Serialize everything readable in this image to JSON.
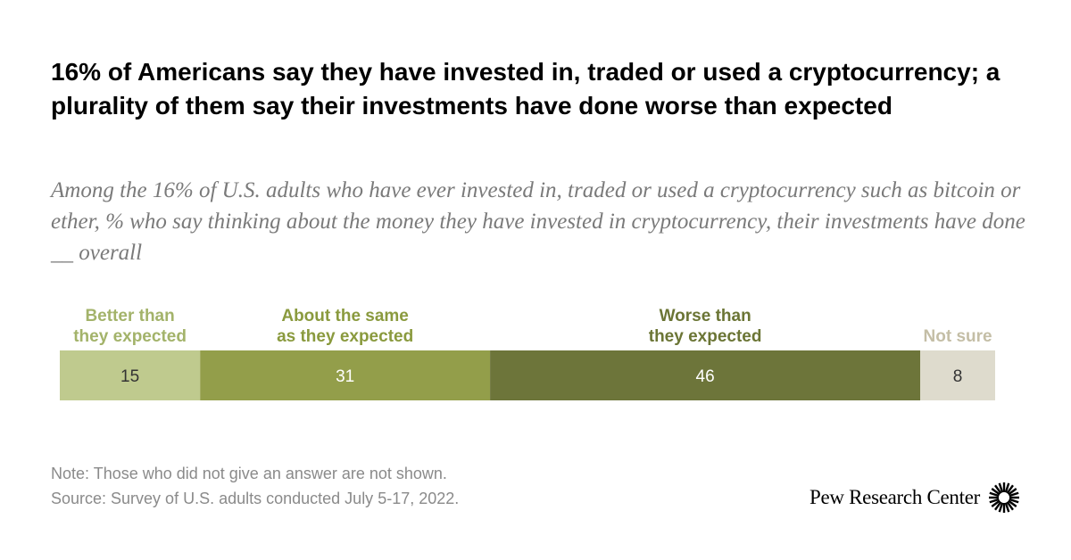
{
  "title": "16% of Americans say they have invested in, traded or used a cryptocurrency; a plurality of them say their investments have done worse than expected",
  "subtitle": "Among the 16% of U.S. adults who have ever invested in, traded or used a cryptocurrency such as bitcoin or ether, % who say thinking about the money they have invested in cryptocurrency, their investments have done __ overall",
  "note": "Note: Those who did not give an answer are not shown.",
  "source": "Source: Survey of U.S. adults conducted July 5-17, 2022.",
  "logo_text": "Pew Research Center",
  "chart_data": {
    "type": "bar",
    "orientation": "horizontal-stacked",
    "series": [
      {
        "name": "Better than they expected",
        "label_lines": [
          "Better than",
          "they expected"
        ],
        "value": 15,
        "color": "#bfca8e",
        "label_color": "#a3b36a",
        "value_color": "#333333"
      },
      {
        "name": "About the same as they expected",
        "label_lines": [
          "About the same",
          "as they expected"
        ],
        "value": 31,
        "color": "#939e4a",
        "label_color": "#8a9a3e",
        "value_color": "#ffffff"
      },
      {
        "name": "Worse than they expected",
        "label_lines": [
          "Worse than",
          "they expected"
        ],
        "value": 46,
        "color": "#6d753a",
        "label_color": "#6b7535",
        "value_color": "#ffffff"
      },
      {
        "name": "Not sure",
        "label_lines": [
          "Not sure"
        ],
        "value": 8,
        "color": "#dedbcd",
        "label_color": "#c4bea6",
        "value_color": "#333333"
      }
    ]
  }
}
